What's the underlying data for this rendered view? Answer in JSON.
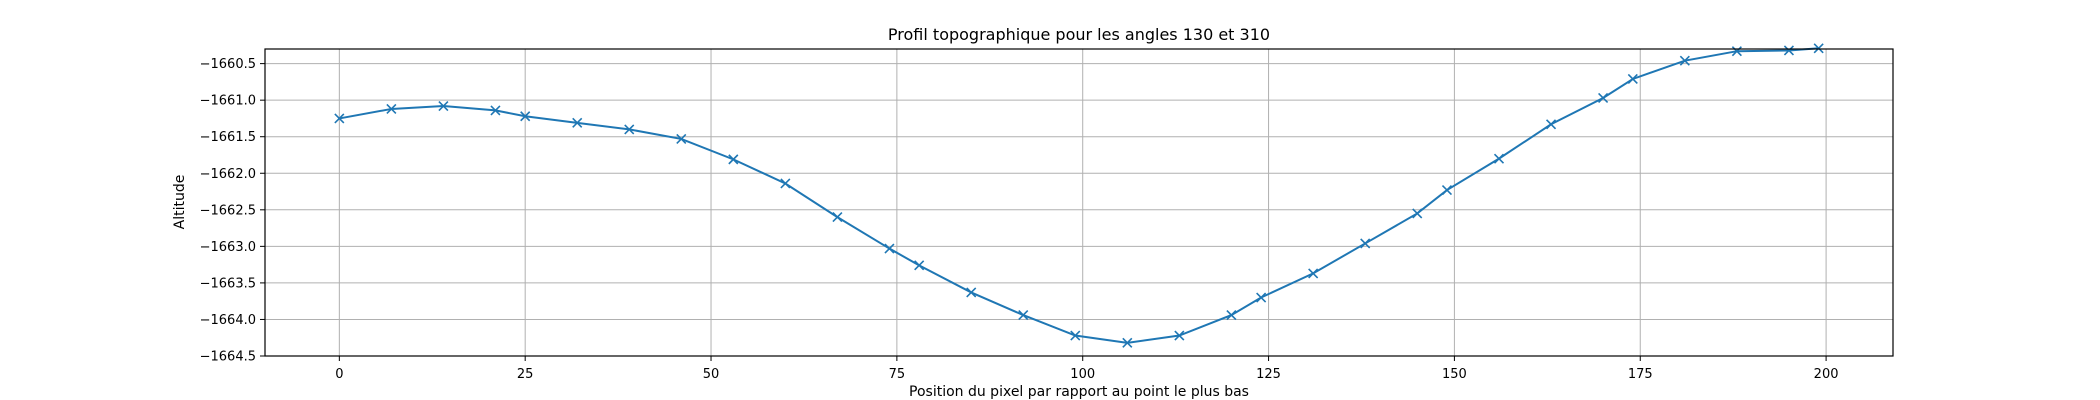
{
  "chart_data": {
    "type": "line",
    "title": "Profil topographique pour les angles 130 et 310",
    "xlabel": "Position du pixel par rapport au point le plus bas",
    "ylabel": "Altitude",
    "xlim": [
      -10,
      209
    ],
    "ylim": [
      -1664.5,
      -1660.3
    ],
    "xticks": [
      0,
      25,
      50,
      75,
      100,
      125,
      150,
      175,
      200
    ],
    "yticks": [
      -1660.5,
      -1661.0,
      -1661.5,
      -1662.0,
      -1662.5,
      -1663.0,
      -1663.5,
      -1664.0,
      -1664.5
    ],
    "xtick_labels": [
      "0",
      "25",
      "50",
      "75",
      "100",
      "125",
      "150",
      "175",
      "200"
    ],
    "ytick_labels": [
      "−1660.5",
      "−1661.0",
      "−1661.5",
      "−1662.0",
      "−1662.5",
      "−1663.0",
      "−1663.5",
      "−1664.0",
      "−1664.5"
    ],
    "grid": true,
    "marker": "x",
    "color": "#1f77b4",
    "series": [
      {
        "x": [
          0,
          7,
          14,
          21,
          25,
          32,
          39,
          46,
          53,
          60,
          67,
          74,
          78,
          85,
          92,
          99,
          106,
          113,
          120,
          124,
          131,
          138,
          145,
          149,
          156,
          163,
          170,
          174,
          181,
          188,
          195,
          199
        ],
        "y": [
          -1661.25,
          -1661.12,
          -1661.08,
          -1661.14,
          -1661.22,
          -1661.31,
          -1661.4,
          -1661.53,
          -1661.81,
          -1662.14,
          -1662.6,
          -1663.03,
          -1663.26,
          -1663.63,
          -1663.94,
          -1664.22,
          -1664.32,
          -1664.22,
          -1663.94,
          -1663.7,
          -1663.37,
          -1662.96,
          -1662.55,
          -1662.23,
          -1661.8,
          -1661.33,
          -1660.97,
          -1660.71,
          -1660.46,
          -1660.33,
          -1660.32,
          -1660.29
        ]
      }
    ]
  }
}
